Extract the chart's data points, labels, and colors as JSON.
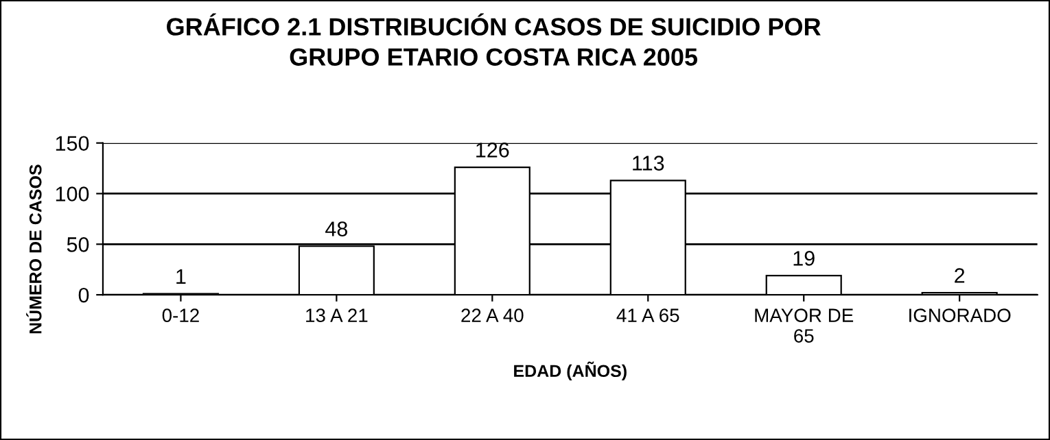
{
  "chart_data": {
    "type": "bar",
    "title": "GRÁFICO 2.1 DISTRIBUCIÓN CASOS DE SUICIDIO POR\nGRUPO ETARIO COSTA RICA 2005",
    "xlabel": "EDAD (AÑOS)",
    "ylabel": "NÚMERO DE CASOS",
    "categories": [
      "0-12",
      "13 A 21",
      "22 A 40",
      "41 A 65",
      "MAYOR DE\n65",
      "IGNORADO"
    ],
    "values": [
      1,
      48,
      126,
      113,
      19,
      2
    ],
    "color": "#ffffff",
    "ylim": [
      0,
      150
    ],
    "yticks": [
      0,
      50,
      100,
      150
    ],
    "grid": "y",
    "data_labels": true
  }
}
